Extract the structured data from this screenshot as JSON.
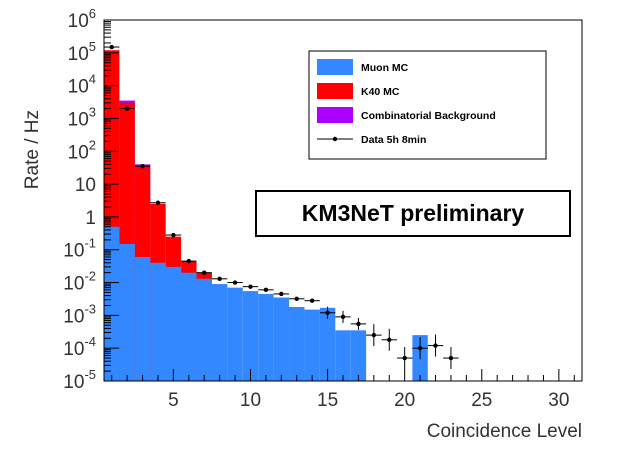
{
  "chart_data": {
    "type": "histogram",
    "xlabel": "Coincidence Level",
    "ylabel": "Rate / Hz",
    "xlim": [
      0.5,
      31.5
    ],
    "ylim_log10": [
      -5,
      6
    ],
    "log_y": true,
    "grid": false,
    "legend_position": "top-right",
    "x_ticks": [
      5,
      10,
      15,
      20,
      25,
      30
    ],
    "y_ticks": [
      {
        "exp": -5,
        "base": "10",
        "sup": "-5"
      },
      {
        "exp": -4,
        "base": "10",
        "sup": "-4"
      },
      {
        "exp": -3,
        "base": "10",
        "sup": "-3"
      },
      {
        "exp": -2,
        "base": "10",
        "sup": "-2"
      },
      {
        "exp": -1,
        "base": "10",
        "sup": "-1"
      },
      {
        "exp": 0,
        "base": "1",
        "sup": ""
      },
      {
        "exp": 1,
        "base": "10",
        "sup": ""
      },
      {
        "exp": 2,
        "base": "10",
        "sup": "2"
      },
      {
        "exp": 3,
        "base": "10",
        "sup": "3"
      },
      {
        "exp": 4,
        "base": "10",
        "sup": "4"
      },
      {
        "exp": 5,
        "base": "10",
        "sup": "5"
      },
      {
        "exp": 6,
        "base": "10",
        "sup": "6"
      }
    ],
    "annotation": "KM3NeT preliminary",
    "series": [
      {
        "name": "Muon MC",
        "kind": "stacked-histogram",
        "color": "#3388ff",
        "bins": [
          {
            "x": 1,
            "y": 0.5
          },
          {
            "x": 2,
            "y": 0.15
          },
          {
            "x": 3,
            "y": 0.06
          },
          {
            "x": 4,
            "y": 0.04
          },
          {
            "x": 5,
            "y": 0.03
          },
          {
            "x": 6,
            "y": 0.02
          },
          {
            "x": 7,
            "y": 0.013
          },
          {
            "x": 8,
            "y": 0.009
          },
          {
            "x": 9,
            "y": 0.007
          },
          {
            "x": 10,
            "y": 0.0055
          },
          {
            "x": 11,
            "y": 0.0045
          },
          {
            "x": 12,
            "y": 0.0035
          },
          {
            "x": 13,
            "y": 0.0018
          },
          {
            "x": 14,
            "y": 0.0015
          },
          {
            "x": 15,
            "y": 0.0017
          },
          {
            "x": 16,
            "y": 0.00035
          },
          {
            "x": 17,
            "y": 0.00035
          },
          {
            "x": 21,
            "y": 0.00025
          }
        ]
      },
      {
        "name": "K40 MC",
        "kind": "stacked-histogram",
        "color": "#ff0000",
        "bins": [
          {
            "x": 1,
            "y": 120000
          },
          {
            "x": 2,
            "y": 3000
          },
          {
            "x": 3,
            "y": 35
          },
          {
            "x": 4,
            "y": 2.5
          },
          {
            "x": 5,
            "y": 0.25
          },
          {
            "x": 6,
            "y": 0.045
          },
          {
            "x": 7,
            "y": 0.02
          }
        ]
      },
      {
        "name": "Combinatorial Background",
        "kind": "stacked-histogram",
        "color": "#aa00ff",
        "bins": [
          {
            "x": 2,
            "y": 3500
          },
          {
            "x": 3,
            "y": 40
          }
        ]
      },
      {
        "name": "Data 5h 8min",
        "kind": "points-with-errors",
        "color": "#000000",
        "points": [
          {
            "x": 1,
            "y": 150000
          },
          {
            "x": 2,
            "y": 2000
          },
          {
            "x": 3,
            "y": 35
          },
          {
            "x": 4,
            "y": 2.7
          },
          {
            "x": 5,
            "y": 0.28
          },
          {
            "x": 6,
            "y": 0.045
          },
          {
            "x": 7,
            "y": 0.02
          },
          {
            "x": 8,
            "y": 0.013
          },
          {
            "x": 9,
            "y": 0.01
          },
          {
            "x": 10,
            "y": 0.0075
          },
          {
            "x": 11,
            "y": 0.006
          },
          {
            "x": 12,
            "y": 0.0045
          },
          {
            "x": 13,
            "y": 0.0032
          },
          {
            "x": 14,
            "y": 0.0028
          },
          {
            "x": 15,
            "y": 0.0012
          },
          {
            "x": 16,
            "y": 0.0009
          },
          {
            "x": 17,
            "y": 0.00055
          },
          {
            "x": 18,
            "y": 0.00025
          },
          {
            "x": 19,
            "y": 0.00018
          },
          {
            "x": 20,
            "y": 5e-05
          },
          {
            "x": 21,
            "y": 0.0001
          },
          {
            "x": 22,
            "y": 0.00012
          },
          {
            "x": 23,
            "y": 5e-05
          }
        ]
      }
    ]
  }
}
